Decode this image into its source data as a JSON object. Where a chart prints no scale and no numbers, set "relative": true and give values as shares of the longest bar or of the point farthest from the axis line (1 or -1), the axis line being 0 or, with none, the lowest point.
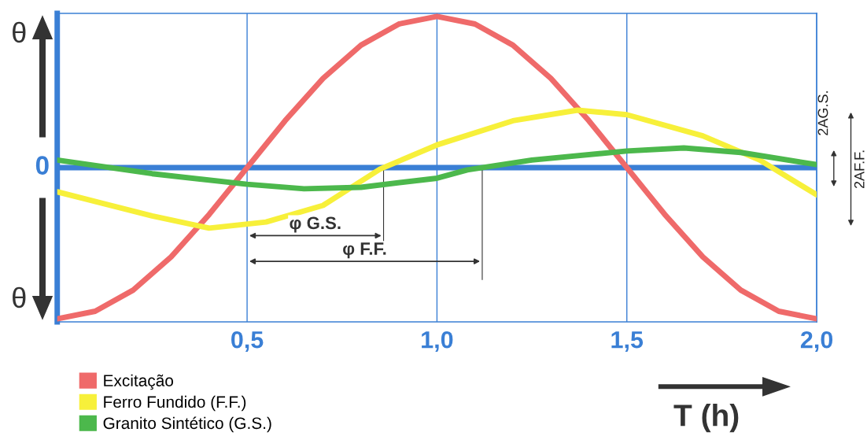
{
  "chart_data": {
    "type": "line",
    "relative": true,
    "xlabel": "T (h)",
    "x": [
      0,
      0.1,
      0.2,
      0.3,
      0.4,
      0.5,
      0.6,
      0.7,
      0.8,
      0.9,
      1.0,
      1.1,
      1.2,
      1.3,
      1.4,
      1.5,
      1.6,
      1.7,
      1.8,
      1.9,
      2.0
    ],
    "series": [
      {
        "name": "Excitação",
        "color": "#ef6a6a",
        "values": [
          -1,
          -0.95,
          -0.81,
          -0.59,
          -0.31,
          0,
          0.31,
          0.59,
          0.81,
          0.95,
          1,
          0.95,
          0.81,
          0.59,
          0.31,
          0,
          -0.31,
          -0.59,
          -0.81,
          -0.95,
          -1
        ]
      },
      {
        "name": "Ferro Fundido (F.F.)",
        "color": "#f7f03a",
        "x": [
          0,
          0.25,
          0.4,
          0.55,
          0.7,
          0.85,
          1.0,
          1.2,
          1.37,
          1.5,
          1.7,
          1.85,
          2.0
        ],
        "values": [
          -0.16,
          -0.32,
          -0.4,
          -0.36,
          -0.25,
          -0.01,
          0.15,
          0.31,
          0.38,
          0.35,
          0.21,
          0.05,
          -0.18
        ]
      },
      {
        "name": "Granito Sintético (G.S.)",
        "color": "#4cb84c",
        "x": [
          0,
          0.25,
          0.5,
          0.65,
          0.8,
          1.0,
          1.08,
          1.25,
          1.5,
          1.65,
          1.8,
          2.0
        ],
        "values": [
          0.05,
          -0.04,
          -0.11,
          -0.14,
          -0.13,
          -0.07,
          -0.015,
          0.05,
          0.11,
          0.13,
          0.1,
          0.02
        ]
      }
    ],
    "xlim": [
      0,
      2.0
    ],
    "xticks": [
      {
        "value": 0.5,
        "label": "0,5"
      },
      {
        "value": 1.0,
        "label": "1,0"
      },
      {
        "value": 1.5,
        "label": "1,5"
      },
      {
        "value": 2.0,
        "label": "2,0"
      }
    ],
    "grid": "x",
    "legend": "bottom left",
    "ref_lines": [
      {
        "axis": "y",
        "value": 0,
        "label": "0",
        "color": "#3a7fd5"
      }
    ],
    "annotations": [
      "φ G.S.",
      "φ F.F.",
      "2AG.S.",
      "2AF.F.",
      "θ",
      "θ"
    ]
  }
}
